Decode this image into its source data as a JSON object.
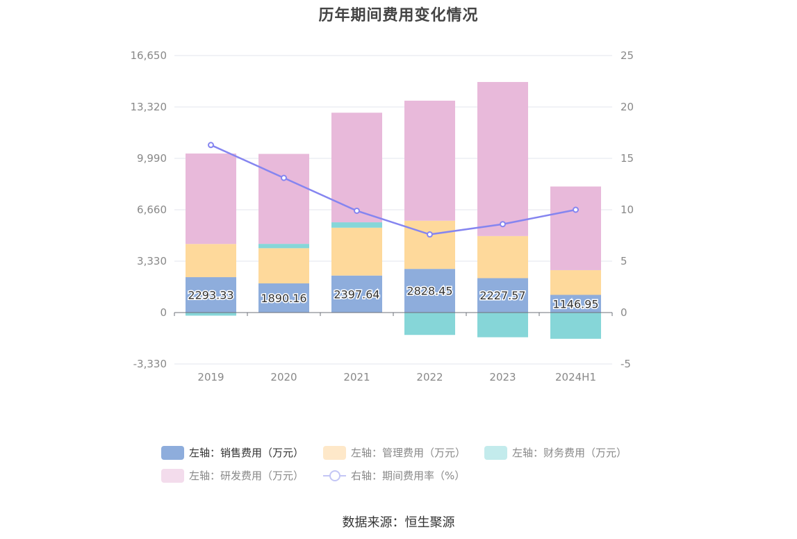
{
  "chart_data": {
    "type": "bar",
    "title": "历年期间费用变化情况",
    "categories": [
      "2019",
      "2020",
      "2021",
      "2022",
      "2023",
      "2024H1"
    ],
    "stacked": true,
    "y_left": {
      "ticks": [
        "16,650",
        "13,320",
        "9,990",
        "6,660",
        "3,330",
        "0",
        "-3,330"
      ],
      "min": -3330,
      "max": 16650
    },
    "y_right": {
      "ticks": [
        "25",
        "20",
        "15",
        "10",
        "5",
        "0",
        "-5"
      ],
      "min": -5,
      "max": 25
    },
    "series": [
      {
        "name": "左轴：销售费用（万元）",
        "axis": "left",
        "type": "bar",
        "color": "#8eaddc",
        "values": [
          2293.33,
          1890.16,
          2397.64,
          2828.45,
          2227.57,
          1146.95
        ],
        "labels": [
          "2293.33",
          "1890.16",
          "2397.64",
          "2828.45",
          "2227.57",
          "1146.95"
        ]
      },
      {
        "name": "左轴：管理费用（万元）",
        "axis": "left",
        "type": "bar",
        "color": "#fed99b",
        "values": [
          2150,
          2280,
          3100,
          3120,
          2730,
          1600
        ]
      },
      {
        "name": "左轴：财务费用（万元）",
        "axis": "left",
        "type": "bar",
        "color": "#86d6d8",
        "values": [
          -200,
          280,
          350,
          -1450,
          -1600,
          -1700
        ]
      },
      {
        "name": "左轴：研发费用（万元）",
        "axis": "left",
        "type": "bar",
        "color": "#e8b9da",
        "values": [
          5860,
          5830,
          7100,
          7780,
          9980,
          5420
        ]
      },
      {
        "name": "右轴：期间费用率（%）",
        "axis": "right",
        "type": "line",
        "color": "#8585f0",
        "values": [
          16.3,
          13.1,
          9.9,
          7.6,
          8.6,
          10.0
        ]
      }
    ],
    "legend_position": "bottom",
    "grid": true
  },
  "legend": [
    {
      "label": "左轴：销售费用（万元）",
      "color": "#8eaddc"
    },
    {
      "label": "左轴：管理费用（万元）",
      "color": "#fee8c9"
    },
    {
      "label": "左轴：财务费用（万元）",
      "color": "#c3ebec"
    },
    {
      "label": "左轴：研发费用（万元）",
      "color": "#f3dcec"
    },
    {
      "label": "右轴：期间费用率（%）",
      "color": "#c3c6f5"
    }
  ],
  "source": "数据来源：恒生聚源"
}
